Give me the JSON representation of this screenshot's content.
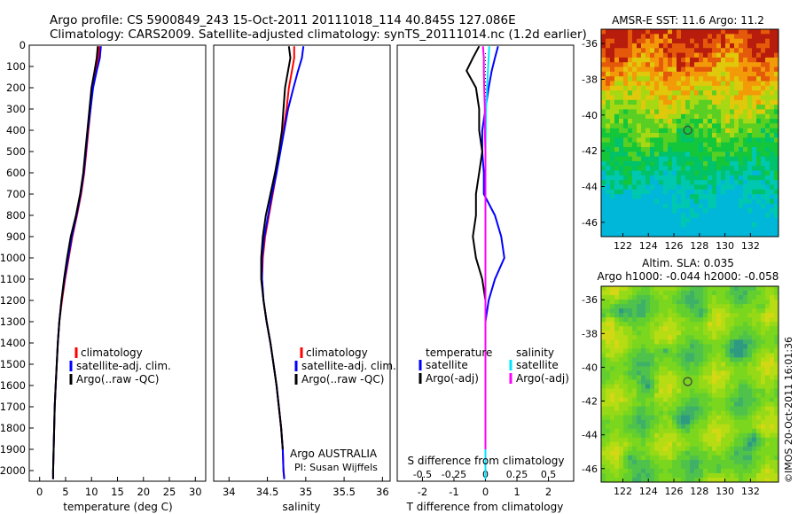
{
  "header": {
    "line1": "Argo profile: CS 5900849_243 15-Oct-2011 20111018_114 40.845S 127.086E",
    "line2": "Climatology: CARS2009. Satellite-adjusted climatology: synTS_20111014.nc (1.2d earlier)"
  },
  "depth_ticks": [
    "0",
    "100",
    "200",
    "300",
    "400",
    "500",
    "600",
    "700",
    "800",
    "900",
    "1000",
    "1100",
    "1200",
    "1300",
    "1400",
    "1500",
    "1600",
    "1700",
    "1800",
    "1900",
    "2000"
  ],
  "colors": {
    "climatology": "#ff0000",
    "satellite": "#0000ff",
    "argo": "#000000",
    "sal_satellite": "#00e5ff",
    "sal_argo": "#ff00ff",
    "marker": "#444444"
  },
  "temp_panel": {
    "xlabel": "temperature (deg C)",
    "xticks": [
      "0",
      "5",
      "10",
      "15",
      "20",
      "25",
      "30"
    ],
    "legend": [
      "climatology",
      "satellite-adj. clim.",
      "Argo(..raw -QC)"
    ]
  },
  "sal_panel": {
    "xlabel": "salinity",
    "xticks": [
      "34",
      "34.5",
      "35",
      "35.5",
      "36"
    ],
    "legend": [
      "climatology",
      "satellite-adj. clim.",
      "Argo(..raw -QC)"
    ],
    "note1": "Argo AUSTRALIA",
    "note2": "PI: Susan Wijffels"
  },
  "diff_panel": {
    "xlabel": "T difference from climatology",
    "top_label": "S difference from climatology",
    "xticks": [
      "-2",
      "-1",
      "0",
      "1",
      "2"
    ],
    "sticks": [
      "-0.5",
      "-0.25",
      "0",
      "0.25",
      "0.5"
    ],
    "legend_t_head": "temperature",
    "legend_s_head": "salinity",
    "legend_t": [
      "satellite",
      "Argo(-adj)"
    ],
    "legend_s": [
      "satellite",
      "Argo(-adj)"
    ]
  },
  "sst_map": {
    "title": "AMSR-E SST: 11.6  Argo: 11.2",
    "xticks": [
      "122",
      "124",
      "126",
      "128",
      "130",
      "132"
    ],
    "yticks": [
      "-36",
      "-38",
      "-40",
      "-42",
      "-44",
      "-46"
    ]
  },
  "sla_map": {
    "title1": "Altim. SLA: 0.035",
    "title2": "Argo h1000: -0.044 h2000: -0.058",
    "xticks": [
      "122",
      "124",
      "126",
      "128",
      "130",
      "132"
    ],
    "yticks": [
      "-36",
      "-38",
      "-40",
      "-42",
      "-44",
      "-46"
    ]
  },
  "footer": "©IMOS 20-Oct-2011 16:01:36",
  "chart_data": [
    {
      "type": "line",
      "xlabel": "temperature (deg C)",
      "ylim": [
        2050,
        0
      ],
      "xlim": [
        -2,
        32
      ],
      "series": [
        {
          "name": "climatology",
          "points": [
            [
              11.5,
              5
            ],
            [
              11.3,
              60
            ],
            [
              10.8,
              120
            ],
            [
              10.2,
              200
            ],
            [
              9.8,
              300
            ],
            [
              9.4,
              400
            ],
            [
              9.0,
              500
            ],
            [
              8.6,
              600
            ],
            [
              8.0,
              700
            ],
            [
              7.2,
              800
            ],
            [
              6.3,
              900
            ],
            [
              5.6,
              1000
            ],
            [
              4.9,
              1100
            ],
            [
              4.3,
              1200
            ],
            [
              3.8,
              1300
            ],
            [
              3.5,
              1400
            ],
            [
              3.3,
              1500
            ],
            [
              3.1,
              1600
            ],
            [
              2.9,
              1700
            ],
            [
              2.8,
              1800
            ],
            [
              2.7,
              1900
            ],
            [
              2.6,
              2000
            ],
            [
              2.6,
              2040
            ]
          ]
        },
        {
          "name": "satellite-adj. clim.",
          "points": [
            [
              11.8,
              5
            ],
            [
              11.6,
              60
            ],
            [
              11.0,
              120
            ],
            [
              10.3,
              200
            ],
            [
              9.8,
              300
            ],
            [
              9.3,
              400
            ],
            [
              8.9,
              500
            ],
            [
              8.5,
              600
            ],
            [
              7.9,
              700
            ],
            [
              7.1,
              800
            ],
            [
              6.2,
              900
            ],
            [
              5.5,
              1000
            ],
            [
              4.8,
              1100
            ],
            [
              4.2,
              1200
            ],
            [
              3.8,
              1300
            ],
            [
              3.5,
              1400
            ],
            [
              3.3,
              1500
            ],
            [
              3.1,
              1600
            ],
            [
              2.9,
              1700
            ],
            [
              2.8,
              1800
            ],
            [
              2.7,
              1900
            ],
            [
              2.6,
              2000
            ],
            [
              2.6,
              2040
            ]
          ]
        },
        {
          "name": "Argo(..raw -QC)",
          "points": [
            [
              11.2,
              5
            ],
            [
              11.0,
              60
            ],
            [
              10.6,
              120
            ],
            [
              10.0,
              200
            ],
            [
              9.6,
              300
            ],
            [
              9.2,
              400
            ],
            [
              8.8,
              500
            ],
            [
              8.4,
              600
            ],
            [
              7.8,
              700
            ],
            [
              7.0,
              800
            ],
            [
              6.0,
              900
            ],
            [
              5.3,
              1000
            ],
            [
              4.7,
              1100
            ],
            [
              4.2,
              1200
            ],
            [
              3.8,
              1300
            ],
            [
              3.5,
              1400
            ],
            [
              3.3,
              1500
            ],
            [
              3.1,
              1600
            ],
            [
              2.9,
              1700
            ],
            [
              2.8,
              1800
            ],
            [
              2.7,
              1900
            ],
            [
              2.6,
              2000
            ],
            [
              2.6,
              2040
            ]
          ]
        }
      ]
    },
    {
      "type": "line",
      "xlabel": "salinity",
      "ylim": [
        2050,
        0
      ],
      "xlim": [
        33.8,
        36.1
      ],
      "series": [
        {
          "name": "climatology",
          "points": [
            [
              34.85,
              5
            ],
            [
              34.85,
              60
            ],
            [
              34.82,
              120
            ],
            [
              34.78,
              200
            ],
            [
              34.75,
              300
            ],
            [
              34.71,
              400
            ],
            [
              34.66,
              500
            ],
            [
              34.62,
              600
            ],
            [
              34.57,
              700
            ],
            [
              34.52,
              800
            ],
            [
              34.47,
              900
            ],
            [
              34.44,
              1000
            ],
            [
              34.43,
              1100
            ],
            [
              34.45,
              1200
            ],
            [
              34.49,
              1300
            ],
            [
              34.54,
              1400
            ],
            [
              34.58,
              1500
            ],
            [
              34.62,
              1600
            ],
            [
              34.65,
              1700
            ],
            [
              34.68,
              1800
            ],
            [
              34.7,
              1900
            ],
            [
              34.71,
              2000
            ],
            [
              34.72,
              2040
            ]
          ]
        },
        {
          "name": "satellite-adj. clim.",
          "points": [
            [
              34.97,
              5
            ],
            [
              34.95,
              60
            ],
            [
              34.9,
              120
            ],
            [
              34.84,
              200
            ],
            [
              34.77,
              300
            ],
            [
              34.72,
              400
            ],
            [
              34.67,
              500
            ],
            [
              34.62,
              600
            ],
            [
              34.56,
              700
            ],
            [
              34.51,
              800
            ],
            [
              34.46,
              900
            ],
            [
              34.43,
              1000
            ],
            [
              34.43,
              1100
            ],
            [
              34.45,
              1200
            ],
            [
              34.49,
              1300
            ],
            [
              34.54,
              1400
            ],
            [
              34.58,
              1500
            ],
            [
              34.62,
              1600
            ],
            [
              34.65,
              1700
            ],
            [
              34.68,
              1800
            ],
            [
              34.7,
              1900
            ],
            [
              34.71,
              2000
            ],
            [
              34.72,
              2040
            ]
          ]
        },
        {
          "name": "Argo(..raw -QC)",
          "points": [
            [
              34.78,
              5
            ],
            [
              34.8,
              60
            ],
            [
              34.77,
              120
            ],
            [
              34.73,
              200
            ],
            [
              34.71,
              300
            ],
            [
              34.69,
              400
            ],
            [
              34.65,
              500
            ],
            [
              34.6,
              600
            ],
            [
              34.54,
              700
            ],
            [
              34.48,
              800
            ],
            [
              34.44,
              900
            ],
            [
              34.42,
              1000
            ],
            [
              34.42,
              1100
            ],
            [
              34.45,
              1200
            ],
            [
              34.49,
              1300
            ],
            [
              34.54,
              1400
            ],
            [
              34.58,
              1500
            ],
            [
              34.62,
              1600
            ],
            [
              34.65,
              1700
            ],
            [
              34.68,
              1800
            ],
            [
              34.7,
              1900
            ]
          ]
        }
      ]
    },
    {
      "type": "line",
      "xlabel": "T difference from climatology",
      "ylim": [
        2050,
        0
      ],
      "xlim": [
        -2.8,
        2.8
      ],
      "series": [
        {
          "name": "temperature satellite",
          "points": [
            [
              0.4,
              5
            ],
            [
              0.3,
              60
            ],
            [
              0.2,
              120
            ],
            [
              0.1,
              200
            ],
            [
              0.0,
              300
            ],
            [
              -0.1,
              400
            ],
            [
              -0.1,
              500
            ],
            [
              -0.05,
              600
            ],
            [
              -0.05,
              700
            ],
            [
              0.3,
              800
            ],
            [
              0.5,
              900
            ],
            [
              0.6,
              1000
            ],
            [
              0.3,
              1100
            ],
            [
              0.1,
              1200
            ],
            [
              0.0,
              1300
            ],
            [
              0.0,
              1500
            ],
            [
              0.0,
              1800
            ],
            [
              0.0,
              2040
            ]
          ]
        },
        {
          "name": "temperature Argo(-adj)",
          "points": [
            [
              -0.2,
              5
            ],
            [
              -0.4,
              60
            ],
            [
              -0.6,
              120
            ],
            [
              -0.3,
              200
            ],
            [
              -0.2,
              300
            ],
            [
              -0.2,
              400
            ],
            [
              -0.1,
              500
            ],
            [
              -0.2,
              600
            ],
            [
              -0.3,
              700
            ],
            [
              -0.3,
              800
            ],
            [
              -0.4,
              900
            ],
            [
              -0.3,
              1000
            ],
            [
              -0.1,
              1100
            ],
            [
              0.0,
              1200
            ],
            [
              0.0,
              1500
            ],
            [
              0.0,
              1800
            ],
            [
              0.0,
              1900
            ]
          ]
        },
        {
          "name": "salinity satellite",
          "points": [
            [
              0.12,
              5
            ],
            [
              0.1,
              60
            ],
            [
              0.08,
              120
            ],
            [
              0.05,
              200
            ],
            [
              0.02,
              300
            ],
            [
              0.01,
              400
            ],
            [
              0.0,
              500
            ],
            [
              0.0,
              600
            ],
            [
              0.0,
              800
            ],
            [
              0.0,
              1200
            ],
            [
              0.0,
              1600
            ],
            [
              0.0,
              2040
            ]
          ]
        },
        {
          "name": "salinity Argo(-adj)",
          "points": [
            [
              -0.08,
              5
            ],
            [
              -0.05,
              60
            ],
            [
              -0.05,
              120
            ],
            [
              -0.04,
              200
            ],
            [
              -0.02,
              300
            ],
            [
              -0.02,
              400
            ],
            [
              0.0,
              500
            ],
            [
              0.0,
              600
            ],
            [
              0.0,
              800
            ],
            [
              0.0,
              1200
            ],
            [
              0.0,
              1600
            ],
            [
              0.0,
              1900
            ]
          ]
        }
      ]
    },
    {
      "type": "heatmap",
      "title": "AMSR-E SST: 11.6  Argo: 11.2",
      "xlim": [
        120.3,
        134.2
      ],
      "ylim": [
        -46.8,
        -35.2
      ],
      "marker": [
        127.086,
        -40.845
      ]
    },
    {
      "type": "heatmap",
      "title": "Altim. SLA: 0.035",
      "xlim": [
        120.3,
        134.2
      ],
      "ylim": [
        -46.8,
        -35.2
      ],
      "marker": [
        127.086,
        -40.845
      ]
    }
  ]
}
